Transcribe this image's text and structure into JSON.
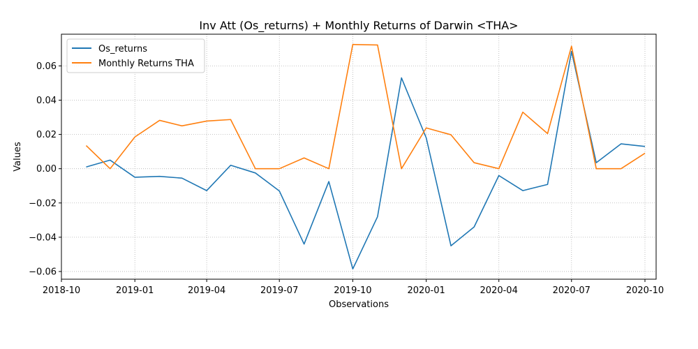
{
  "chart_data": {
    "type": "line",
    "title": "Inv Att (Os_returns) + Monthly Returns of Darwin <THA>",
    "xlabel": "Observations",
    "ylabel": "Values",
    "x_ticks": [
      "2018-10",
      "2019-01",
      "2019-04",
      "2019-07",
      "2019-10",
      "2020-01",
      "2020-04",
      "2020-07",
      "2020-10"
    ],
    "y_ticks": [
      "−0.06",
      "−0.04",
      "−0.02",
      "0.00",
      "0.02",
      "0.04",
      "0.06"
    ],
    "xlim": [
      "2018-10-01",
      "2020-10-15"
    ],
    "ylim": [
      -0.0645,
      0.0785
    ],
    "grid": true,
    "grid_style": "dotted",
    "legend_position": "top-left",
    "x": [
      "2018-11-01",
      "2018-12-01",
      "2019-01-01",
      "2019-02-01",
      "2019-03-01",
      "2019-04-01",
      "2019-05-01",
      "2019-06-01",
      "2019-07-01",
      "2019-08-01",
      "2019-09-01",
      "2019-10-01",
      "2019-11-01",
      "2019-12-01",
      "2020-01-01",
      "2020-02-01",
      "2020-03-01",
      "2020-04-01",
      "2020-05-01",
      "2020-06-01",
      "2020-07-01",
      "2020-08-01",
      "2020-09-01",
      "2020-10-01"
    ],
    "series": [
      {
        "name": "Os_returns",
        "color": "#1f77b4",
        "values": [
          0.001,
          0.005,
          -0.005,
          -0.0045,
          -0.0055,
          -0.0128,
          0.002,
          -0.0025,
          -0.013,
          -0.044,
          -0.0075,
          -0.0585,
          -0.028,
          0.053,
          0.018,
          -0.045,
          -0.034,
          -0.004,
          -0.0128,
          -0.0092,
          0.0685,
          0.0035,
          0.0145,
          0.013
        ]
      },
      {
        "name": "Monthly Returns THA",
        "color": "#ff7f0e",
        "values": [
          0.0135,
          0.0,
          0.0185,
          0.0282,
          0.025,
          0.0278,
          0.0287,
          0.0,
          0.0,
          0.0063,
          0.0,
          0.0725,
          0.0722,
          0.0,
          0.0238,
          0.0198,
          0.0035,
          0.0,
          0.033,
          0.0205,
          0.0715,
          0.0,
          0.0,
          0.009
        ]
      }
    ]
  }
}
